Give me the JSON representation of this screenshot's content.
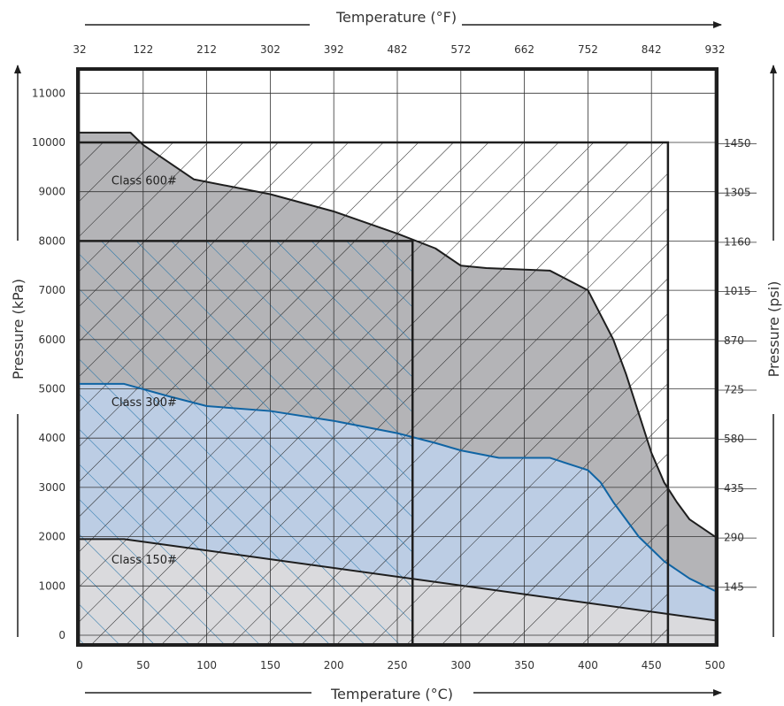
{
  "chart_data": {
    "type": "area",
    "title": "",
    "xlabel_bottom": "Temperature (°C)",
    "xlabel_top": "Temperature (°F)",
    "ylabel_left": "Pressure (kPa)",
    "ylabel_right": "Pressure (psi)",
    "xlim": [
      0,
      500
    ],
    "ylim": [
      0,
      11500
    ],
    "grid": true,
    "x_ticks_bottom": [
      0,
      50,
      100,
      150,
      200,
      250,
      300,
      350,
      400,
      450,
      500
    ],
    "x_ticks_top": [
      {
        "c": 0,
        "label": "32"
      },
      {
        "c": 50,
        "label": "122"
      },
      {
        "c": 100,
        "label": "212"
      },
      {
        "c": 150,
        "label": "302"
      },
      {
        "c": 200,
        "label": "392"
      },
      {
        "c": 250,
        "label": "482"
      },
      {
        "c": 300,
        "label": "572"
      },
      {
        "c": 350,
        "label": "662"
      },
      {
        "c": 400,
        "label": "752"
      },
      {
        "c": 450,
        "label": "842"
      },
      {
        "c": 500,
        "label": "932"
      }
    ],
    "y_ticks_left": [
      0,
      1000,
      2000,
      3000,
      4000,
      5000,
      6000,
      7000,
      8000,
      9000,
      10000,
      11000
    ],
    "y_ticks_right": [
      {
        "kpa": 1000,
        "label": "145"
      },
      {
        "kpa": 2000,
        "label": "290"
      },
      {
        "kpa": 3000,
        "label": "435"
      },
      {
        "kpa": 4000,
        "label": "580"
      },
      {
        "kpa": 5000,
        "label": "725"
      },
      {
        "kpa": 6000,
        "label": "870"
      },
      {
        "kpa": 7000,
        "label": "1015"
      },
      {
        "kpa": 8000,
        "label": "1160"
      },
      {
        "kpa": 9000,
        "label": "1305"
      },
      {
        "kpa": 10000,
        "label": "1450"
      }
    ],
    "series": [
      {
        "name": "Class 600#",
        "fill": "#b4b4b7",
        "line": "#1e1e1e",
        "label_at": [
          25,
          9150
        ],
        "x": [
          0,
          40,
          50,
          90,
          150,
          200,
          250,
          280,
          300,
          320,
          370,
          400,
          410,
          420,
          430,
          440,
          450,
          460,
          470,
          480,
          500
        ],
        "values": [
          10200,
          10200,
          9950,
          9250,
          8950,
          8600,
          8150,
          7850,
          7500,
          7450,
          7400,
          7000,
          6500,
          6000,
          5300,
          4500,
          3700,
          3100,
          2700,
          2350,
          2000
        ]
      },
      {
        "name": "Class 300#",
        "fill": "#bccde4",
        "line": "#1064a3",
        "label_at": [
          25,
          4650
        ],
        "x": [
          0,
          35,
          70,
          100,
          150,
          200,
          250,
          280,
          300,
          330,
          370,
          400,
          410,
          420,
          430,
          440,
          450,
          460,
          480,
          500
        ],
        "values": [
          5100,
          5100,
          4850,
          4650,
          4550,
          4350,
          4100,
          3900,
          3750,
          3600,
          3600,
          3350,
          3100,
          2700,
          2350,
          2000,
          1750,
          1500,
          1150,
          900
        ]
      },
      {
        "name": "Class 150#",
        "fill": "#dadadd",
        "line": "#1e1e1e",
        "label_at": [
          25,
          1450
        ],
        "x": [
          0,
          35,
          500
        ],
        "values": [
          1950,
          1950,
          300
        ]
      }
    ],
    "hatched_regions": [
      {
        "name": "class-600-rating-box",
        "x": [
          0,
          463
        ],
        "y": [
          0,
          10000
        ],
        "color": "#1e1e1e"
      },
      {
        "name": "class-300-rating-box",
        "x": [
          0,
          262
        ],
        "y": [
          0,
          8000
        ],
        "color": "#1d71a8"
      }
    ]
  }
}
